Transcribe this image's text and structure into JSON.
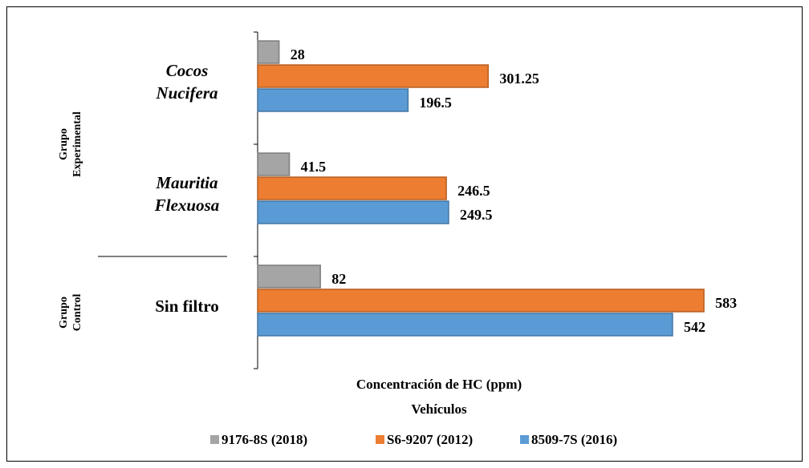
{
  "chart_data": {
    "type": "bar",
    "orientation": "horizontal",
    "x_label": "Concentración de HC (ppm)",
    "legend_title": "Vehículos",
    "legend_position": "bottom",
    "groups": [
      {
        "label": "Grupo Experimental",
        "categories": [
          "Cocos Nucifera",
          "Mauritia Flexuosa"
        ]
      },
      {
        "label": "Grupo Control",
        "categories": [
          "Sin filtro"
        ]
      }
    ],
    "series": [
      {
        "name": "9176-8S (2018)",
        "color": "#a5a5a5",
        "values": [
          28,
          41.5,
          82
        ]
      },
      {
        "name": "S6-9207 (2012)",
        "color": "#ed7d31",
        "values": [
          301.25,
          246.5,
          583
        ]
      },
      {
        "name": "8509-7S (2016)",
        "color": "#5b9bd5",
        "values": [
          196.5,
          249.5,
          542
        ]
      }
    ],
    "xlim": [
      0,
      650
    ]
  }
}
